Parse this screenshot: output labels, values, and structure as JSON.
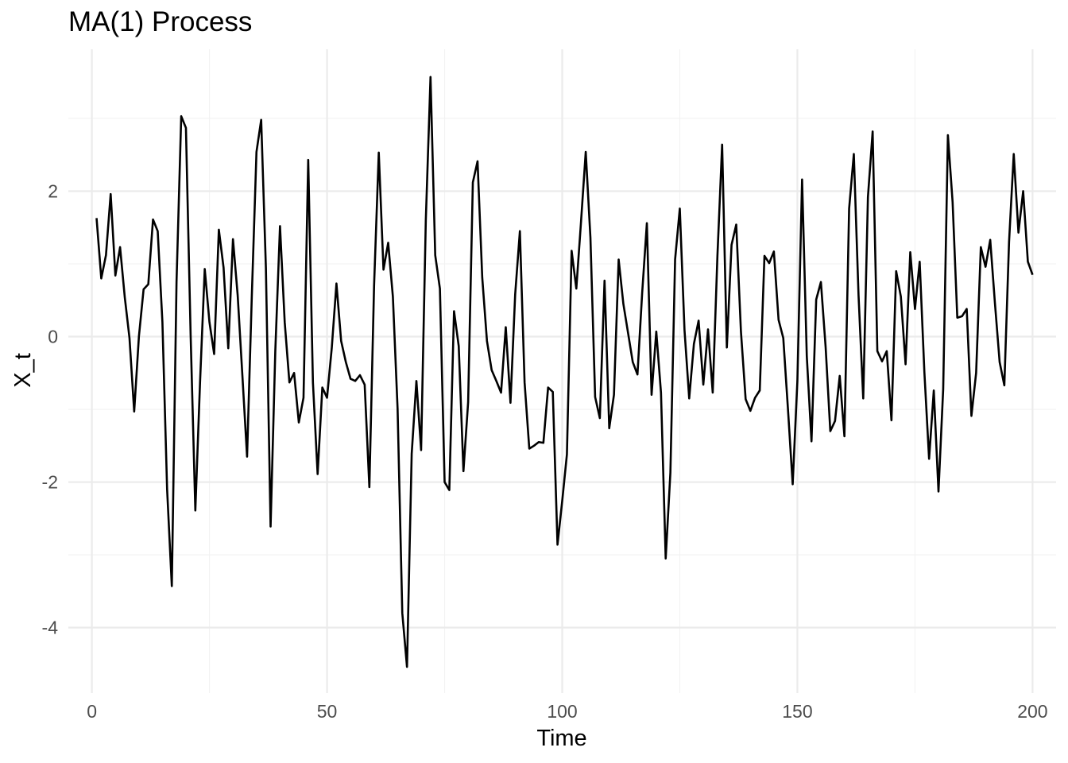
{
  "chart_data": {
    "type": "line",
    "title": "MA(1) Process",
    "xlabel": "Time",
    "ylabel": "X_t",
    "xlim": [
      -5,
      205
    ],
    "ylim": [
      -4.9,
      3.95
    ],
    "x_ticks": [
      0,
      50,
      100,
      150,
      200
    ],
    "x_tick_labels": [
      "0",
      "50",
      "100",
      "150",
      "200"
    ],
    "x_minor_ticks": [
      25,
      75,
      125,
      175
    ],
    "y_ticks": [
      -4,
      -2,
      0,
      2
    ],
    "y_tick_labels": [
      "-4",
      "-2",
      "0",
      "2"
    ],
    "y_minor_ticks": [
      -3,
      -1,
      1,
      3
    ],
    "grid": true,
    "line_color": "#000000",
    "series": [
      {
        "x_start": 1,
        "x_step": 1,
        "values": [
          1.63,
          0.8,
          1.12,
          1.96,
          0.84,
          1.23,
          0.54,
          -0.02,
          -1.03,
          0.0,
          0.65,
          0.72,
          1.61,
          1.45,
          0.2,
          -2.1,
          -3.43,
          0.75,
          3.03,
          2.87,
          0.02,
          -2.39,
          -0.63,
          0.93,
          0.2,
          -0.24,
          1.47,
          0.95,
          -0.16,
          1.34,
          0.57,
          -0.53,
          -1.65,
          0.54,
          2.54,
          2.98,
          0.95,
          -2.61,
          -0.2,
          1.52,
          0.2,
          -0.63,
          -0.5,
          -1.18,
          -0.84,
          2.43,
          -0.63,
          -1.89,
          -0.7,
          -0.84,
          -0.16,
          0.73,
          -0.06,
          -0.35,
          -0.58,
          -0.61,
          -0.53,
          -0.66,
          -2.07,
          0.7,
          2.53,
          0.92,
          1.29,
          0.55,
          -0.99,
          -3.8,
          -4.54,
          -1.61,
          -0.61,
          -1.56,
          1.6,
          3.57,
          1.12,
          0.66,
          -2.0,
          -2.11,
          0.35,
          -0.13,
          -1.85,
          -0.9,
          2.12,
          2.41,
          0.81,
          -0.06,
          -0.46,
          -0.61,
          -0.77,
          0.13,
          -0.91,
          0.58,
          1.45,
          -0.63,
          -1.54,
          -1.5,
          -1.45,
          -1.46,
          -0.7,
          -0.76,
          -2.86,
          -2.26,
          -1.62,
          1.18,
          0.66,
          1.58,
          2.54,
          1.36,
          -0.83,
          -1.12,
          0.77,
          -1.26,
          -0.8,
          1.06,
          0.45,
          0.05,
          -0.35,
          -0.52,
          0.6,
          1.56,
          -0.8,
          0.07,
          -0.77,
          -3.05,
          -1.87,
          1.06,
          1.76,
          0.09,
          -0.85,
          -0.1,
          0.22,
          -0.66,
          0.1,
          -0.77,
          1.11,
          2.64,
          -0.15,
          1.26,
          1.54,
          0.07,
          -0.86,
          -1.02,
          -0.84,
          -0.74,
          1.11,
          1.01,
          1.17,
          0.23,
          -0.02,
          -1.0,
          -2.03,
          -0.61,
          2.16,
          -0.27,
          -1.44,
          0.51,
          0.75,
          -0.14,
          -1.3,
          -1.16,
          -0.54,
          -1.37,
          1.76,
          2.51,
          0.57,
          -0.85,
          1.92,
          2.82,
          -0.2,
          -0.34,
          -0.2,
          -1.15,
          0.9,
          0.55,
          -0.38,
          1.16,
          0.38,
          1.03,
          -0.49,
          -1.68,
          -0.74,
          -2.13,
          -0.72,
          2.77,
          1.85,
          0.26,
          0.28,
          0.38,
          -1.09,
          -0.5,
          1.23,
          0.96,
          1.33,
          0.46,
          -0.35,
          -0.67,
          1.3,
          2.51,
          1.43,
          2.0,
          1.03,
          0.85
        ]
      }
    ]
  }
}
